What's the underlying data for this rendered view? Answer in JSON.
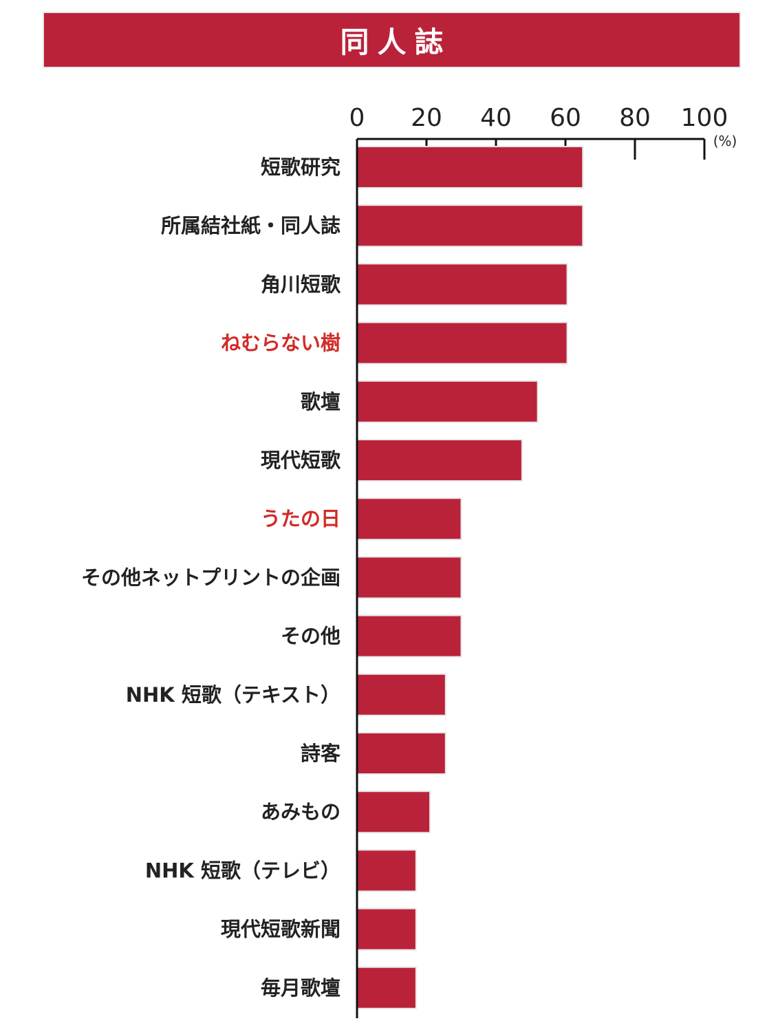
{
  "title": "同人誌",
  "colors": {
    "bar": "#ba2239",
    "bar_stroke": "#e6e6e6",
    "highlight_text": "#d12b27",
    "text": "#222222",
    "axis": "#111111"
  },
  "chart_data": {
    "type": "bar",
    "orientation": "horizontal",
    "title": "同人誌",
    "xlabel": "",
    "ylabel": "",
    "unit": "(%)",
    "xlim": [
      0,
      100
    ],
    "ticks": [
      "0",
      "20",
      "40",
      "60",
      "80",
      "100"
    ],
    "grid": false,
    "categories": [
      "短歌研究",
      "所属結社紙・同人誌",
      "角川短歌",
      "ねむらない樹",
      "歌壇",
      "現代短歌",
      "うたの日",
      "その他ネットプリントの企画",
      "その他",
      "NHK 短歌（テキスト）",
      "詩客",
      "あみもの",
      "NHK 短歌（テレビ）",
      "現代短歌新聞",
      "毎月歌壇"
    ],
    "highlighted": [
      "ねむらない樹",
      "うたの日"
    ],
    "values": [
      65,
      65,
      60.5,
      60.5,
      52,
      47.5,
      30,
      30,
      30,
      25.5,
      25.5,
      21,
      17,
      17,
      17
    ]
  }
}
